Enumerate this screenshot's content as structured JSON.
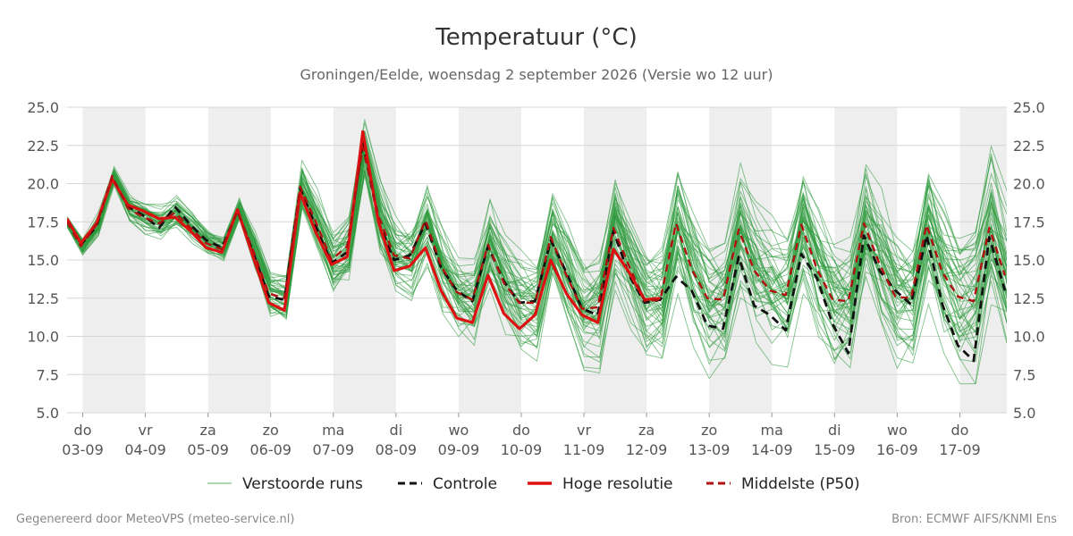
{
  "chart_data": {
    "type": "line",
    "title": "Temperatuur (°C)",
    "subtitle": "Groningen/Eelde, woensdag  2 september 2026 (Versie wo 12 uur)",
    "xlabel": "",
    "ylabel": "",
    "ylim": [
      5.0,
      25.0
    ],
    "y_ticks": [
      "5.0",
      "7.5",
      "10.0",
      "12.5",
      "15.0",
      "17.5",
      "20.0",
      "22.5",
      "25.0"
    ],
    "grid": true,
    "legend_position": "bottom",
    "x_range_days": [
      0.75,
      15.75
    ],
    "day_labels": [
      {
        "day": "do",
        "date": "03-09"
      },
      {
        "day": "vr",
        "date": "04-09"
      },
      {
        "day": "za",
        "date": "05-09"
      },
      {
        "day": "zo",
        "date": "06-09"
      },
      {
        "day": "ma",
        "date": "07-09"
      },
      {
        "day": "di",
        "date": "08-09"
      },
      {
        "day": "wo",
        "date": "09-09"
      },
      {
        "day": "do",
        "date": "10-09"
      },
      {
        "day": "vr",
        "date": "11-09"
      },
      {
        "day": "za",
        "date": "12-09"
      },
      {
        "day": "zo",
        "date": "13-09"
      },
      {
        "day": "ma",
        "date": "14-09"
      },
      {
        "day": "di",
        "date": "15-09"
      },
      {
        "day": "wo",
        "date": "16-09"
      },
      {
        "day": "do",
        "date": "17-09"
      }
    ],
    "series": [
      {
        "name": "Controle",
        "color": "#111111",
        "x": [
          0.75,
          0.97,
          1.22,
          1.47,
          1.72,
          1.97,
          2.22,
          2.47,
          2.72,
          2.97,
          3.22,
          3.47,
          3.72,
          3.97,
          4.22,
          4.47,
          4.72,
          4.97,
          5.22,
          5.47,
          5.72,
          5.97,
          6.22,
          6.47,
          6.72,
          6.97,
          7.22,
          7.47,
          7.72,
          7.97,
          8.22,
          8.47,
          8.72,
          8.97,
          9.22,
          9.47,
          9.72,
          9.97,
          10.22,
          10.47,
          10.72,
          10.97,
          11.22,
          11.47,
          11.72,
          11.97,
          12.22,
          12.47,
          12.72,
          12.97,
          13.22,
          13.47,
          13.72,
          13.97,
          14.22,
          14.47,
          14.72,
          14.97,
          15.22,
          15.47,
          15.72
        ],
        "values": [
          17.6,
          16.0,
          17.2,
          20.4,
          18.5,
          17.9,
          17.1,
          18.5,
          17.3,
          16.3,
          15.8,
          18.2,
          15.5,
          12.6,
          12.4,
          19.7,
          17.2,
          14.8,
          15.5,
          22.8,
          17.5,
          15.0,
          15.3,
          17.4,
          14.5,
          13.0,
          12.3,
          15.9,
          13.6,
          12.2,
          12.3,
          16.3,
          14.2,
          11.8,
          11.4,
          16.9,
          14.0,
          12.2,
          12.4,
          13.9,
          13.0,
          10.7,
          10.5,
          15.2,
          12.0,
          11.4,
          10.4,
          15.4,
          13.8,
          10.8,
          8.9,
          16.6,
          14.3,
          13.0,
          12.1,
          16.6,
          12.1,
          9.4,
          8.4,
          16.5,
          13.0
        ]
      },
      {
        "name": "Hoge resolutie",
        "color": "#dd1111",
        "x": [
          0.75,
          0.97,
          1.22,
          1.47,
          1.72,
          1.97,
          2.22,
          2.47,
          2.72,
          2.97,
          3.22,
          3.47,
          3.72,
          3.97,
          4.22,
          4.47,
          4.72,
          4.97,
          5.22,
          5.47,
          5.72,
          5.97,
          6.22,
          6.47,
          6.72,
          6.97,
          7.22,
          7.47,
          7.72,
          7.97,
          8.22,
          8.47,
          8.72,
          8.97,
          9.22,
          9.47,
          9.72,
          9.97,
          10.22
        ],
        "values": [
          17.7,
          16.1,
          17.4,
          20.3,
          18.6,
          18.2,
          17.7,
          17.8,
          16.9,
          15.8,
          15.5,
          18.3,
          15.2,
          12.2,
          11.7,
          19.4,
          16.8,
          14.7,
          15.2,
          23.4,
          17.5,
          14.3,
          14.6,
          15.8,
          13.0,
          11.2,
          10.9,
          14.0,
          11.5,
          10.5,
          11.4,
          15.0,
          12.8,
          11.4,
          10.9,
          15.7,
          14.2,
          12.4,
          12.5
        ]
      },
      {
        "name": "Middelste (P50)",
        "color": "#b01010",
        "x": [
          0.75,
          0.97,
          1.22,
          1.47,
          1.72,
          1.97,
          2.22,
          2.47,
          2.72,
          2.97,
          3.22,
          3.47,
          3.72,
          3.97,
          4.22,
          4.47,
          4.72,
          4.97,
          5.22,
          5.47,
          5.72,
          5.97,
          6.22,
          6.47,
          6.72,
          6.97,
          7.22,
          7.47,
          7.72,
          7.97,
          8.22,
          8.47,
          8.72,
          8.97,
          9.22,
          9.47,
          9.72,
          9.97,
          10.22,
          10.47,
          10.72,
          10.97,
          11.22,
          11.47,
          11.72,
          11.97,
          12.22,
          12.47,
          12.72,
          12.97,
          13.22,
          13.47,
          13.72,
          13.97,
          14.22,
          14.47,
          14.72,
          14.97,
          15.22,
          15.47,
          15.72
        ],
        "values": [
          17.5,
          15.9,
          17.3,
          20.5,
          18.4,
          17.8,
          17.4,
          18.1,
          17.1,
          16.1,
          15.7,
          18.2,
          15.6,
          12.8,
          12.5,
          19.8,
          17.5,
          15.0,
          15.9,
          22.4,
          17.9,
          15.3,
          15.1,
          17.6,
          14.6,
          12.9,
          12.4,
          16.0,
          13.5,
          12.2,
          12.2,
          16.5,
          14.0,
          11.8,
          11.9,
          17.1,
          14.6,
          12.3,
          12.4,
          17.4,
          14.4,
          12.5,
          12.4,
          17.0,
          14.3,
          13.0,
          12.7,
          17.3,
          14.4,
          12.4,
          12.3,
          17.4,
          14.7,
          12.6,
          12.5,
          17.3,
          14.2,
          12.6,
          12.3,
          17.1,
          14.0
        ]
      }
    ],
    "ensemble": {
      "name": "Verstoorde runs",
      "color": "#2e9b3d",
      "member_count": 50,
      "x_start": 0.75,
      "x_step": 0.25,
      "median": [
        17.5,
        15.9,
        17.3,
        20.5,
        18.4,
        17.8,
        17.4,
        18.1,
        17.1,
        16.1,
        15.7,
        18.2,
        15.6,
        12.8,
        12.5,
        19.8,
        17.5,
        15.0,
        15.9,
        22.4,
        17.9,
        15.3,
        15.1,
        17.6,
        14.6,
        12.9,
        12.4,
        16.0,
        13.5,
        12.2,
        12.2,
        16.5,
        14.0,
        11.8,
        11.9,
        17.1,
        14.6,
        12.3,
        12.4,
        17.4,
        14.4,
        12.5,
        12.4,
        17.0,
        14.3,
        13.0,
        12.7,
        17.3,
        14.4,
        12.4,
        12.3,
        17.4,
        14.7,
        12.6,
        12.5,
        17.3,
        14.2,
        12.6,
        12.3,
        17.1,
        14.0
      ],
      "spread": [
        0.3,
        0.4,
        0.6,
        0.5,
        0.6,
        0.7,
        0.8,
        0.8,
        0.7,
        0.6,
        0.6,
        0.6,
        0.9,
        1.0,
        1.1,
        1.1,
        1.3,
        1.5,
        1.6,
        1.4,
        1.7,
        1.8,
        1.9,
        1.9,
        2.0,
        2.0,
        2.1,
        2.2,
        2.2,
        2.3,
        2.3,
        2.4,
        2.4,
        2.5,
        2.5,
        2.6,
        2.6,
        2.6,
        2.7,
        2.7,
        2.8,
        2.8,
        2.8,
        2.9,
        2.9,
        2.9,
        3.0,
        3.0,
        3.0,
        3.1,
        3.1,
        3.1,
        3.2,
        3.2,
        3.2,
        3.3,
        3.3,
        3.3,
        3.4,
        3.4,
        3.4
      ]
    },
    "legend": [
      {
        "label": "Verstoorde runs",
        "color": "#2e9b3d",
        "style": "thin"
      },
      {
        "label": "Controle",
        "color": "#111111",
        "style": "dashed"
      },
      {
        "label": "Hoge resolutie",
        "color": "#dd1111",
        "style": "solid"
      },
      {
        "label": "Middelste (P50)",
        "color": "#b01010",
        "style": "dashed"
      }
    ]
  },
  "footer": {
    "left": "Gegenereerd door MeteoVPS (meteo-service.nl)",
    "right": "Bron: ECMWF AIFS/KNMI Ens"
  }
}
